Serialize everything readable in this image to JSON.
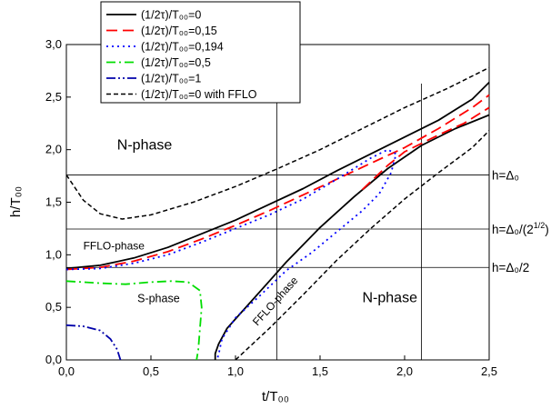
{
  "chart_data": {
    "type": "line",
    "xlabel": "t/T₀₀",
    "ylabel": "h/T₀₀",
    "xlim": [
      0,
      2.5
    ],
    "ylim": [
      0,
      3.0
    ],
    "x_ticks": [
      "0,0",
      "0,5",
      "1,0",
      "1,5",
      "2,0",
      "2,5"
    ],
    "y_ticks": [
      "0,0",
      "0,5",
      "1,0",
      "1,5",
      "2,0",
      "2,5",
      "3,0"
    ],
    "legend_position": "top-center",
    "series": [
      {
        "name": "(1/2τ)/T₀₀=0",
        "color": "#000000",
        "dash": "solid",
        "width": 1.8,
        "segments": [
          [
            [
              0,
              0.87
            ],
            [
              0.2,
              0.9
            ],
            [
              0.4,
              0.97
            ],
            [
              0.6,
              1.07
            ],
            [
              0.8,
              1.2
            ],
            [
              1.0,
              1.33
            ],
            [
              1.2,
              1.48
            ],
            [
              1.4,
              1.63
            ],
            [
              1.6,
              1.8
            ],
            [
              1.8,
              1.96
            ],
            [
              2.0,
              2.12
            ],
            [
              2.2,
              2.28
            ],
            [
              2.4,
              2.48
            ],
            [
              2.5,
              2.64
            ]
          ],
          [
            [
              0.88,
              0
            ],
            [
              0.88,
              0.06
            ],
            [
              0.9,
              0.15
            ],
            [
              0.95,
              0.3
            ],
            [
              1.05,
              0.48
            ],
            [
              1.2,
              0.75
            ],
            [
              1.3,
              0.93
            ],
            [
              1.5,
              1.26
            ],
            [
              1.7,
              1.55
            ],
            [
              1.9,
              1.82
            ],
            [
              2.1,
              2.04
            ],
            [
              2.3,
              2.2
            ],
            [
              2.5,
              2.33
            ]
          ]
        ]
      },
      {
        "name": "(1/2τ)/T₀₀=0,15",
        "color": "#ff0000",
        "dash": "long",
        "width": 1.8,
        "segments": [
          [
            [
              0,
              0.86
            ],
            [
              0.2,
              0.88
            ],
            [
              0.4,
              0.94
            ],
            [
              0.6,
              1.03
            ],
            [
              0.8,
              1.15
            ],
            [
              1.0,
              1.28
            ],
            [
              1.2,
              1.42
            ],
            [
              1.4,
              1.57
            ],
            [
              1.6,
              1.72
            ],
            [
              1.8,
              1.87
            ],
            [
              2.0,
              2.02
            ],
            [
              2.2,
              2.2
            ],
            [
              2.4,
              2.4
            ],
            [
              2.5,
              2.52
            ]
          ],
          [
            [
              1.75,
              1.62
            ],
            [
              1.9,
              1.85
            ],
            [
              2.0,
              1.98
            ],
            [
              2.2,
              2.14
            ],
            [
              2.35,
              2.25
            ],
            [
              2.5,
              2.4
            ]
          ]
        ]
      },
      {
        "name": "(1/2τ)/T₀₀=0,194",
        "color": "#0000ff",
        "dash": "dot",
        "width": 1.8,
        "segments": [
          [
            [
              0,
              0.86
            ],
            [
              0.2,
              0.87
            ],
            [
              0.4,
              0.92
            ],
            [
              0.6,
              1.0
            ],
            [
              0.8,
              1.12
            ],
            [
              1.0,
              1.25
            ],
            [
              1.2,
              1.38
            ],
            [
              1.4,
              1.53
            ],
            [
              1.6,
              1.72
            ],
            [
              1.8,
              1.92
            ],
            [
              1.9,
              2.0
            ],
            [
              1.95,
              1.96
            ],
            [
              1.92,
              1.78
            ],
            [
              1.85,
              1.58
            ],
            [
              1.75,
              1.42
            ],
            [
              1.6,
              1.22
            ],
            [
              1.45,
              1.02
            ],
            [
              1.3,
              0.85
            ],
            [
              1.15,
              0.62
            ],
            [
              1.0,
              0.4
            ],
            [
              0.92,
              0.2
            ],
            [
              0.9,
              0.05
            ],
            [
              0.89,
              0
            ]
          ]
        ]
      },
      {
        "name": "(1/2τ)/T₀₀=0,5",
        "color": "#00dd00",
        "dash": "dashdot",
        "width": 1.8,
        "segments": [
          [
            [
              0,
              0.75
            ],
            [
              0.2,
              0.73
            ],
            [
              0.35,
              0.72
            ],
            [
              0.5,
              0.74
            ],
            [
              0.62,
              0.75
            ],
            [
              0.72,
              0.74
            ],
            [
              0.79,
              0.66
            ],
            [
              0.8,
              0.5
            ],
            [
              0.79,
              0.3
            ],
            [
              0.78,
              0.1
            ],
            [
              0.77,
              0
            ]
          ]
        ]
      },
      {
        "name": "(1/2τ)/T₀₀=1",
        "color": "#0000aa",
        "dash": "dashdotdot",
        "width": 1.8,
        "segments": [
          [
            [
              0,
              0.33
            ],
            [
              0.1,
              0.32
            ],
            [
              0.2,
              0.28
            ],
            [
              0.26,
              0.2
            ],
            [
              0.3,
              0.1
            ],
            [
              0.32,
              0
            ]
          ]
        ]
      },
      {
        "name": "(1/2τ)/T₀₀=0  with FFLO",
        "color": "#000000",
        "dash": "short",
        "width": 1.5,
        "segments": [
          [
            [
              0,
              1.76
            ],
            [
              0.1,
              1.52
            ],
            [
              0.2,
              1.39
            ],
            [
              0.33,
              1.34
            ],
            [
              0.5,
              1.38
            ],
            [
              0.75,
              1.5
            ],
            [
              1.0,
              1.65
            ],
            [
              1.25,
              1.82
            ],
            [
              1.5,
              2.0
            ],
            [
              1.75,
              2.2
            ],
            [
              2.0,
              2.4
            ],
            [
              2.25,
              2.58
            ],
            [
              2.5,
              2.78
            ]
          ],
          [
            [
              1.0,
              0
            ],
            [
              1.2,
              0.3
            ],
            [
              1.4,
              0.62
            ],
            [
              1.6,
              0.95
            ],
            [
              1.8,
              1.25
            ],
            [
              2.0,
              1.53
            ],
            [
              2.2,
              1.78
            ],
            [
              2.4,
              2.02
            ],
            [
              2.5,
              2.18
            ]
          ]
        ]
      }
    ],
    "hlines": [
      {
        "y": 1.76,
        "label": "h=Δ₀"
      },
      {
        "y": 1.245,
        "label": "h=Δ₀/(2",
        "sup": "1/2",
        "tail": ")"
      },
      {
        "y": 0.88,
        "label": "h=Δ₀/2"
      }
    ],
    "vlines": [
      1.245,
      2.1
    ],
    "annotations": [
      {
        "text": "N-phase",
        "x": 0.3,
        "y": 2.0,
        "size": 16
      },
      {
        "text": "FFLO-phase",
        "x": 0.1,
        "y": 1.05,
        "size": 12
      },
      {
        "text": "S-phase",
        "x": 0.42,
        "y": 0.55,
        "size": 12.5
      },
      {
        "text": "N-phase",
        "x": 1.75,
        "y": 0.55,
        "size": 16
      },
      {
        "text": "FFLO-phase",
        "x": 1.13,
        "y": 0.32,
        "size": 12,
        "rotate": -48
      }
    ]
  }
}
